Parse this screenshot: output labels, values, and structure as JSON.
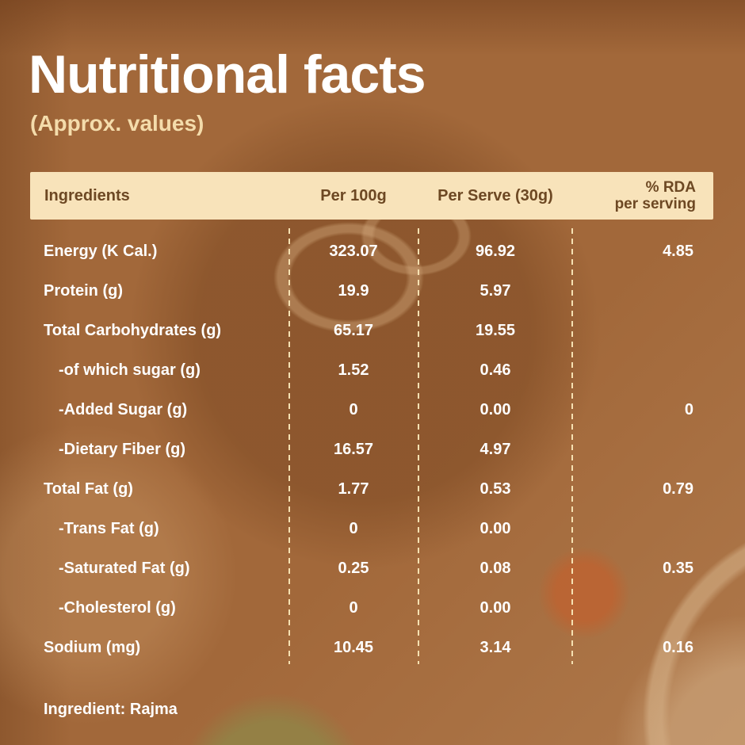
{
  "title": "Nutritional facts",
  "subtitle": "(Approx. values)",
  "table": {
    "headers": {
      "ingredients": "Ingredients",
      "per_100g": "Per 100g",
      "per_serve": "Per Serve (30g)",
      "rda_line1": "% RDA",
      "rda_line2": "per serving"
    },
    "rows": [
      {
        "label": "Energy (K Cal.)",
        "indent": false,
        "per_100g": "323.07",
        "per_serve": "96.92",
        "rda": "4.85"
      },
      {
        "label": "Protein (g)",
        "indent": false,
        "per_100g": "19.9",
        "per_serve": "5.97",
        "rda": ""
      },
      {
        "label": "Total Carbohydrates (g)",
        "indent": false,
        "per_100g": "65.17",
        "per_serve": "19.55",
        "rda": ""
      },
      {
        "label": "-of which sugar (g)",
        "indent": true,
        "per_100g": "1.52",
        "per_serve": "0.46",
        "rda": ""
      },
      {
        "label": "-Added Sugar (g)",
        "indent": true,
        "per_100g": "0",
        "per_serve": "0.00",
        "rda": "0"
      },
      {
        "label": "-Dietary Fiber (g)",
        "indent": true,
        "per_100g": "16.57",
        "per_serve": "4.97",
        "rda": ""
      },
      {
        "label": "Total Fat (g)",
        "indent": false,
        "per_100g": "1.77",
        "per_serve": "0.53",
        "rda": "0.79"
      },
      {
        "label": "-Trans Fat (g)",
        "indent": true,
        "per_100g": "0",
        "per_serve": "0.00",
        "rda": ""
      },
      {
        "label": "-Saturated Fat (g)",
        "indent": true,
        "per_100g": "0.25",
        "per_serve": "0.08",
        "rda": "0.35"
      },
      {
        "label": "-Cholesterol (g)",
        "indent": true,
        "per_100g": "0",
        "per_serve": "0.00",
        "rda": ""
      },
      {
        "label": "Sodium (mg)",
        "indent": false,
        "per_100g": "10.45",
        "per_serve": "3.14",
        "rda": "0.16"
      }
    ]
  },
  "footer": {
    "text": "Ingredient: Rajma"
  },
  "colors": {
    "background_brown": "#a2683a",
    "header_band": "#f8e3ba",
    "header_text": "#6d4823",
    "body_text": "#ffffff",
    "subtitle_text": "#f4dcab",
    "divider_dash": "#f6e1b2",
    "tomato_accent": "#bd6331",
    "chutney_accent": "#928246"
  }
}
